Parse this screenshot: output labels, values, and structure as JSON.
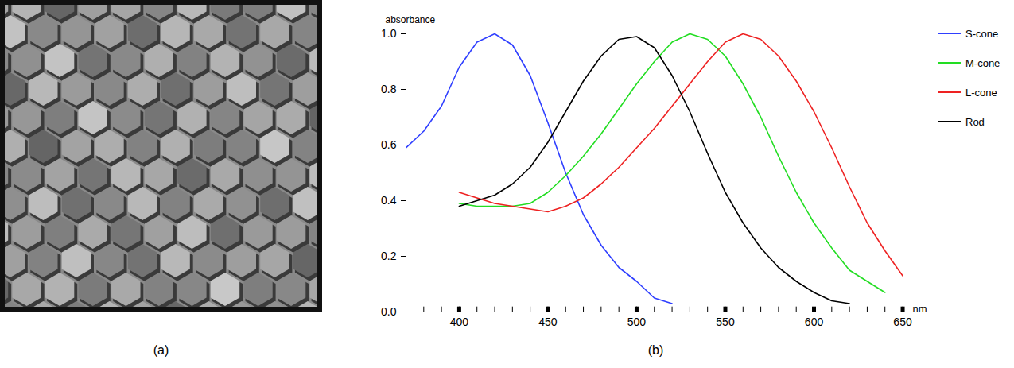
{
  "panel_labels": [
    "(a)",
    "(b)"
  ],
  "chart_data": {
    "type": "line",
    "ylabel": "absorbance",
    "xlabel": "nm",
    "xlim": [
      370,
      652
    ],
    "xticks": [
      400,
      450,
      500,
      550,
      600,
      650
    ],
    "xminorticks": [
      370,
      380,
      390,
      400,
      410,
      420,
      430,
      440,
      450,
      460,
      470,
      480,
      490,
      500,
      510,
      520,
      530,
      540,
      550,
      560,
      570,
      580,
      590,
      600,
      610,
      620,
      630,
      640,
      650
    ],
    "ylim": [
      0,
      1
    ],
    "yticks": [
      {
        "value": 0,
        "label": "0.0"
      },
      0.2,
      0.4,
      0.6,
      0.8,
      {
        "value": 1,
        "label": "1.0"
      }
    ],
    "legend": "right",
    "series": [
      {
        "name": "S-cone",
        "color": "#2f3fff",
        "x": [
          370,
          380,
          390,
          400,
          410,
          420,
          430,
          440,
          450,
          460,
          470,
          480,
          490,
          500,
          510,
          520
        ],
        "values": [
          0.59,
          0.65,
          0.74,
          0.88,
          0.97,
          1.0,
          0.96,
          0.85,
          0.68,
          0.5,
          0.35,
          0.24,
          0.16,
          0.11,
          0.05,
          0.03
        ]
      },
      {
        "name": "M-cone",
        "color": "#22dd22",
        "x": [
          400,
          410,
          420,
          430,
          440,
          450,
          460,
          470,
          480,
          490,
          500,
          510,
          520,
          530,
          540,
          550,
          560,
          570,
          580,
          590,
          600,
          610,
          620,
          630,
          640
        ],
        "values": [
          0.39,
          0.38,
          0.38,
          0.38,
          0.39,
          0.43,
          0.49,
          0.56,
          0.64,
          0.73,
          0.82,
          0.9,
          0.97,
          1.0,
          0.98,
          0.92,
          0.82,
          0.7,
          0.56,
          0.43,
          0.32,
          0.23,
          0.15,
          0.11,
          0.07
        ]
      },
      {
        "name": "L-cone",
        "color": "#ee2222",
        "x": [
          400,
          410,
          420,
          430,
          440,
          450,
          460,
          470,
          480,
          490,
          500,
          510,
          520,
          530,
          540,
          550,
          560,
          570,
          580,
          590,
          600,
          610,
          620,
          630,
          640,
          650
        ],
        "values": [
          0.43,
          0.41,
          0.39,
          0.38,
          0.37,
          0.36,
          0.38,
          0.41,
          0.46,
          0.52,
          0.59,
          0.66,
          0.74,
          0.82,
          0.9,
          0.97,
          1.0,
          0.98,
          0.92,
          0.83,
          0.72,
          0.59,
          0.45,
          0.32,
          0.22,
          0.13
        ]
      },
      {
        "name": "Rod",
        "color": "#000000",
        "x": [
          400,
          410,
          420,
          430,
          440,
          450,
          460,
          470,
          480,
          490,
          500,
          510,
          520,
          530,
          540,
          550,
          560,
          570,
          580,
          590,
          600,
          610,
          620
        ],
        "values": [
          0.38,
          0.4,
          0.42,
          0.46,
          0.52,
          0.61,
          0.72,
          0.83,
          0.92,
          0.98,
          0.99,
          0.95,
          0.85,
          0.72,
          0.57,
          0.43,
          0.32,
          0.23,
          0.16,
          0.11,
          0.07,
          0.04,
          0.03
        ]
      }
    ]
  }
}
